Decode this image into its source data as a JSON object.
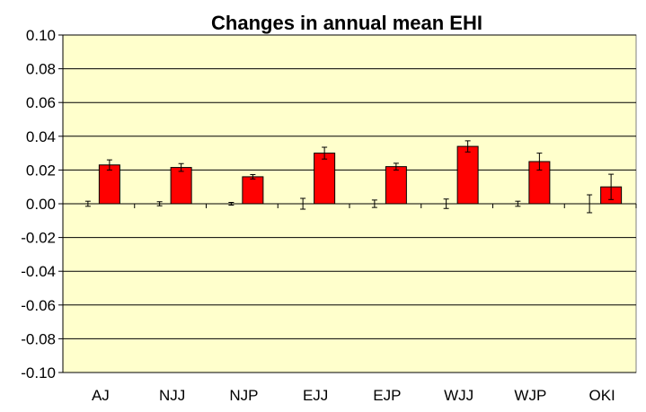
{
  "chart_data": {
    "type": "bar",
    "title": "Changes in annual mean EHI",
    "xlabel": "",
    "ylabel": "",
    "ylim": [
      -0.1,
      0.1
    ],
    "y_ticks": [
      "0.10",
      "0.08",
      "0.06",
      "0.04",
      "0.02",
      "0.00",
      "-0.02",
      "-0.04",
      "-0.06",
      "-0.08",
      "-0.10"
    ],
    "categories": [
      "AJ",
      "NJJ",
      "NJP",
      "EJJ",
      "EJP",
      "WJJ",
      "WJP",
      "OKI"
    ],
    "series": [
      {
        "values": [
          0.0,
          0.0,
          0.0,
          0.0,
          0.0,
          0.0,
          0.0,
          0.0
        ],
        "error": [
          0.0015,
          0.0012,
          0.0008,
          0.0032,
          0.0022,
          0.0028,
          0.0015,
          0.0053
        ],
        "color": "#ffffff"
      },
      {
        "values": [
          0.023,
          0.0215,
          0.016,
          0.03,
          0.022,
          0.034,
          0.025,
          0.01
        ],
        "error": [
          0.003,
          0.0023,
          0.0013,
          0.0035,
          0.002,
          0.0033,
          0.005,
          0.0075
        ],
        "color": "#ff0000"
      }
    ],
    "plot_background": "#ffffcc",
    "grid": true,
    "legend": "none"
  }
}
